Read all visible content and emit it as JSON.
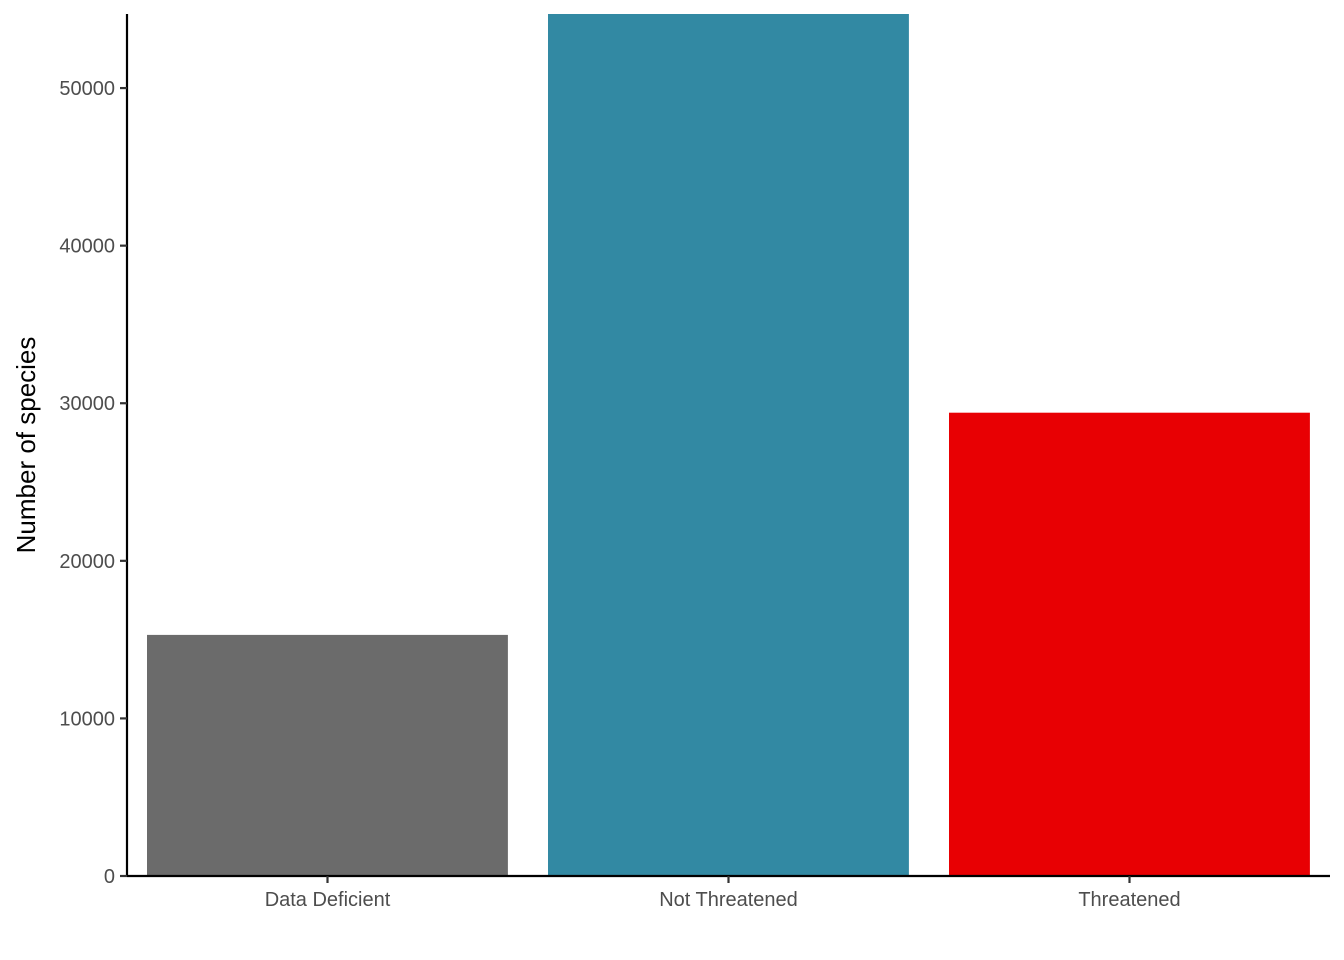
{
  "chart_data": {
    "type": "bar",
    "title": "",
    "xlabel": "",
    "ylabel": "Number of species",
    "categories": [
      "Data Deficient",
      "Not Threatened",
      "Threatened"
    ],
    "values": [
      15300,
      54700,
      29400
    ],
    "colors": [
      "#6b6b6b",
      "#3289a3",
      "#e80003"
    ],
    "ylim": [
      0,
      54700
    ],
    "yticks": [
      0,
      10000,
      20000,
      30000,
      40000,
      50000
    ],
    "ytick_labels": [
      "0",
      "10000",
      "20000",
      "30000",
      "40000",
      "50000"
    ],
    "grid": false,
    "legend": "none"
  }
}
